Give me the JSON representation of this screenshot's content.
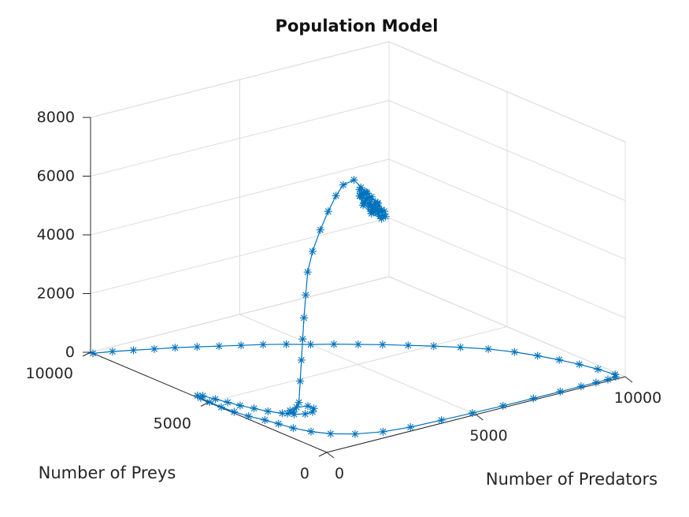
{
  "chart_data": {
    "type": "line",
    "projection": "3d",
    "title": "Population Model",
    "xlabel": "Number of Predators",
    "ylabel": "Number of Preys",
    "zlabel": "",
    "xlim": [
      0,
      10000
    ],
    "ylim": [
      0,
      10000
    ],
    "zlim": [
      0,
      8000
    ],
    "xticks": [
      0,
      5000,
      10000
    ],
    "yticks": [
      0,
      5000,
      10000
    ],
    "zticks": [
      0,
      2000,
      4000,
      6000,
      8000
    ],
    "grid": true,
    "marker": "*",
    "line_color": "#0072bd",
    "series": [
      {
        "points": [
          [
            0,
            9900,
            0
          ],
          [
            500,
            9700,
            0
          ],
          [
            1000,
            9450,
            0
          ],
          [
            1500,
            9200,
            0
          ],
          [
            2000,
            8950,
            0
          ],
          [
            2500,
            8650,
            0
          ],
          [
            3000,
            8350,
            0
          ],
          [
            3500,
            8050,
            0
          ],
          [
            4000,
            7750,
            0
          ],
          [
            4500,
            7400,
            0
          ],
          [
            5000,
            7000,
            0
          ],
          [
            5500,
            6650,
            0
          ],
          [
            6000,
            6250,
            0
          ],
          [
            6500,
            5850,
            0
          ],
          [
            7000,
            5400,
            0
          ],
          [
            7500,
            4950,
            0
          ],
          [
            8000,
            4450,
            0
          ],
          [
            8500,
            3900,
            0
          ],
          [
            8900,
            3300,
            0
          ],
          [
            9200,
            2700,
            0
          ],
          [
            9450,
            2100,
            0
          ],
          [
            9650,
            1500,
            0
          ],
          [
            9800,
            900,
            0
          ],
          [
            9900,
            300,
            0
          ],
          [
            9800,
            150,
            0
          ],
          [
            9500,
            100,
            0
          ],
          [
            9100,
            100,
            0
          ],
          [
            8600,
            100,
            0
          ],
          [
            7900,
            100,
            0
          ],
          [
            7000,
            100,
            0
          ],
          [
            6000,
            120,
            0
          ],
          [
            5000,
            150,
            0
          ],
          [
            4000,
            200,
            0
          ],
          [
            3000,
            250,
            0
          ],
          [
            2200,
            400,
            0
          ],
          [
            1500,
            700,
            0
          ],
          [
            1000,
            1100,
            0
          ],
          [
            700,
            1550,
            0
          ],
          [
            500,
            2050,
            0
          ],
          [
            400,
            2550,
            0
          ],
          [
            300,
            3000,
            0
          ],
          [
            150,
            3500,
            0
          ],
          [
            60,
            4000,
            0
          ],
          [
            30,
            4500,
            0
          ],
          [
            30,
            5000,
            0
          ],
          [
            50,
            5400,
            0
          ],
          [
            100,
            5600,
            0
          ],
          [
            200,
            5500,
            0
          ],
          [
            300,
            5100,
            0
          ],
          [
            400,
            4700,
            0
          ],
          [
            500,
            4300,
            0
          ],
          [
            650,
            3900,
            0
          ],
          [
            800,
            3500,
            0
          ],
          [
            1000,
            3150,
            0
          ],
          [
            1200,
            2900,
            0
          ],
          [
            1450,
            2750,
            0
          ],
          [
            1700,
            2750,
            0
          ],
          [
            1900,
            2950,
            0
          ],
          [
            1900,
            3200,
            0
          ],
          [
            1600,
            3300,
            0
          ],
          [
            1300,
            3200,
            0
          ],
          [
            1100,
            3050,
            0
          ],
          [
            1300,
            3050,
            0
          ],
          [
            1600,
            3200,
            200
          ],
          [
            1800,
            3400,
            800
          ],
          [
            2000,
            3600,
            1400
          ],
          [
            2200,
            3800,
            2000
          ],
          [
            2400,
            4000,
            2600
          ],
          [
            2700,
            4300,
            3200
          ],
          [
            3000,
            4600,
            3800
          ],
          [
            3400,
            4900,
            4300
          ],
          [
            3900,
            5200,
            4800
          ],
          [
            4400,
            5500,
            5200
          ],
          [
            4900,
            5800,
            5500
          ],
          [
            5300,
            6000,
            5700
          ],
          [
            5700,
            6050,
            5750
          ],
          [
            6000,
            5900,
            5300
          ],
          [
            6300,
            5800,
            4900
          ],
          [
            6600,
            5900,
            4500
          ],
          [
            6800,
            6100,
            4200
          ],
          [
            6900,
            6400,
            4000
          ],
          [
            6800,
            6700,
            4100
          ],
          [
            6600,
            6800,
            4400
          ],
          [
            6400,
            6700,
            4800
          ],
          [
            6200,
            6450,
            5150
          ],
          [
            6050,
            6200,
            5350
          ],
          [
            6100,
            6000,
            5200
          ],
          [
            6300,
            5900,
            4900
          ],
          [
            6550,
            5950,
            4550
          ],
          [
            6750,
            6150,
            4250
          ],
          [
            6850,
            6400,
            4100
          ],
          [
            6750,
            6650,
            4200
          ],
          [
            6550,
            6700,
            4500
          ],
          [
            6350,
            6600,
            4850
          ],
          [
            6200,
            6350,
            5100
          ],
          [
            6150,
            6150,
            5200
          ],
          [
            6250,
            6000,
            5050
          ],
          [
            6450,
            6000,
            4750
          ],
          [
            6650,
            6150,
            4400
          ],
          [
            6750,
            6350,
            4250
          ],
          [
            6700,
            6550,
            4300
          ],
          [
            6500,
            6600,
            4600
          ],
          [
            6350,
            6500,
            4900
          ],
          [
            6250,
            6300,
            5050
          ],
          [
            6300,
            6150,
            4950
          ],
          [
            6450,
            6100,
            4700
          ],
          [
            6600,
            6200,
            4450
          ],
          [
            6650,
            6350,
            4350
          ],
          [
            6600,
            6500,
            4450
          ],
          [
            6450,
            6500,
            4700
          ],
          [
            6350,
            6350,
            4850
          ],
          [
            6400,
            6250,
            4750
          ],
          [
            6500,
            6250,
            4550
          ],
          [
            6550,
            6350,
            4500
          ],
          [
            6500,
            6400,
            4600
          ]
        ]
      }
    ]
  }
}
